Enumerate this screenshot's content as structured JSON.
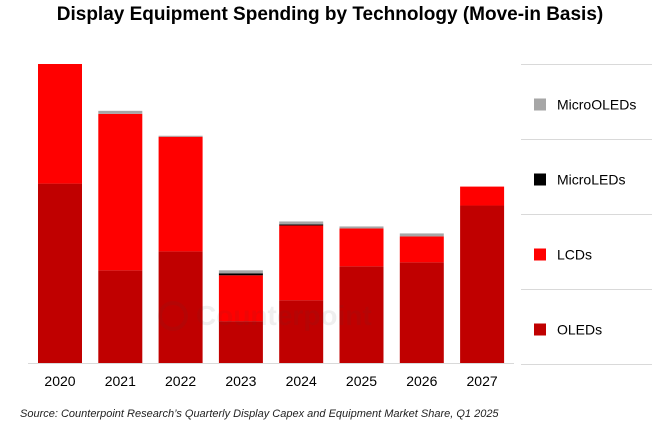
{
  "chart_data": {
    "type": "bar",
    "stacked": true,
    "title": "Display Equipment Spending by Technology (Move-in Basis)",
    "categories": [
      "2020",
      "2021",
      "2022",
      "2023",
      "2024",
      "2025",
      "2026",
      "2027"
    ],
    "series": [
      {
        "name": "OLEDs",
        "color": "#c00000",
        "values": [
          18.0,
          9.3,
          11.2,
          4.2,
          6.3,
          9.7,
          10.1,
          15.8
        ]
      },
      {
        "name": "LCDs",
        "color": "#ff0000",
        "values": [
          12.0,
          15.7,
          11.5,
          4.6,
          7.5,
          3.8,
          2.6,
          1.9
        ]
      },
      {
        "name": "MicroLEDs",
        "color": "#000000",
        "values": [
          0.0,
          0.0,
          0.0,
          0.2,
          0.1,
          0.0,
          0.0,
          0.0
        ]
      },
      {
        "name": "MicroOLEDs",
        "color": "#a6a6a6",
        "values": [
          0.0,
          0.3,
          0.1,
          0.3,
          0.3,
          0.2,
          0.3,
          0.0
        ]
      }
    ],
    "ylim": [
      0,
      30
    ],
    "xlabel": "",
    "ylabel": "",
    "grid": false,
    "legend_position": "right",
    "legend_order": [
      "MicroOLEDs",
      "MicroLEDs",
      "LCDs",
      "OLEDs"
    ]
  },
  "source": "Source: Counterpoint Research’s Quarterly Display Capex and Equipment Market Share, Q1 2025",
  "watermark": {
    "text": "Counterpoint",
    "icon": "counterpoint-logo-icon"
  }
}
